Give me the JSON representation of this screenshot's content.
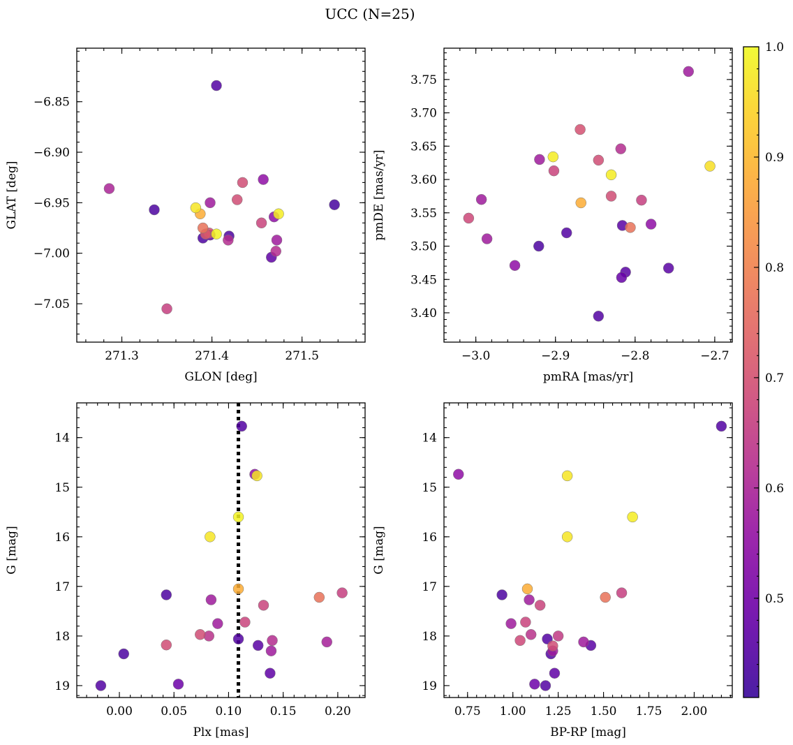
{
  "title": "UCC (N=25)",
  "colorbar": {
    "colormap": "plasma",
    "vmin": 0.41,
    "vmax": 1.0,
    "ticks": [
      0.5,
      0.6,
      0.7,
      0.8,
      0.9,
      1.0
    ],
    "tick_labels": [
      "0.5",
      "0.6",
      "0.7",
      "0.8",
      "0.9",
      "1.0"
    ]
  },
  "chart_data": [
    {
      "type": "scatter",
      "xlabel": "GLON [deg]",
      "ylabel": "GLAT [deg]",
      "xlim": [
        271.25,
        271.57
      ],
      "ylim": [
        -7.088,
        -6.797
      ],
      "xticks": [
        271.3,
        271.4,
        271.5
      ],
      "xtick_labels": [
        "271.3",
        "271.4",
        "271.5"
      ],
      "yticks": [
        -6.85,
        -6.9,
        -6.95,
        -7.0,
        -7.05
      ],
      "ytick_labels": [
        "−6.85",
        "−6.90",
        "−6.95",
        "−7.00",
        "−7.05"
      ],
      "x_minor_step": 0.02,
      "y_minor_step": 0.01,
      "points": [
        {
          "x": 271.405,
          "y": -6.834,
          "c": 0.45
        },
        {
          "x": 271.286,
          "y": -6.936,
          "c": 0.6
        },
        {
          "x": 271.336,
          "y": -6.957,
          "c": 0.44
        },
        {
          "x": 271.382,
          "y": -6.955,
          "c": 0.97
        },
        {
          "x": 271.387,
          "y": -6.961,
          "c": 0.88
        },
        {
          "x": 271.398,
          "y": -6.95,
          "c": 0.58
        },
        {
          "x": 271.39,
          "y": -6.975,
          "c": 0.77
        },
        {
          "x": 271.393,
          "y": -6.981,
          "c": 0.72
        },
        {
          "x": 271.397,
          "y": -6.98,
          "c": 0.7
        },
        {
          "x": 271.39,
          "y": -6.985,
          "c": 0.44
        },
        {
          "x": 271.398,
          "y": -6.982,
          "c": 0.47
        },
        {
          "x": 271.405,
          "y": -6.981,
          "c": 0.99
        },
        {
          "x": 271.419,
          "y": -6.983,
          "c": 0.44
        },
        {
          "x": 271.418,
          "y": -6.987,
          "c": 0.62
        },
        {
          "x": 271.428,
          "y": -6.947,
          "c": 0.69
        },
        {
          "x": 271.434,
          "y": -6.93,
          "c": 0.69
        },
        {
          "x": 271.457,
          "y": -6.927,
          "c": 0.55
        },
        {
          "x": 271.455,
          "y": -6.97,
          "c": 0.67
        },
        {
          "x": 271.469,
          "y": -6.964,
          "c": 0.55
        },
        {
          "x": 271.474,
          "y": -6.961,
          "c": 0.98
        },
        {
          "x": 271.472,
          "y": -6.987,
          "c": 0.58
        },
        {
          "x": 271.471,
          "y": -6.998,
          "c": 0.62
        },
        {
          "x": 271.466,
          "y": -7.004,
          "c": 0.47
        },
        {
          "x": 271.536,
          "y": -6.952,
          "c": 0.43
        },
        {
          "x": 271.35,
          "y": -7.055,
          "c": 0.66
        }
      ]
    },
    {
      "type": "scatter",
      "xlabel": "pmRA [mas/yr]",
      "ylabel": "pmDE [mas/yr]",
      "xlim": [
        -3.04,
        -2.678
      ],
      "ylim": [
        3.356,
        3.797
      ],
      "xticks": [
        -3.0,
        -2.9,
        -2.8,
        -2.7
      ],
      "xtick_labels": [
        "−3.0",
        "−2.9",
        "−2.8",
        "−2.7"
      ],
      "yticks": [
        3.4,
        3.45,
        3.5,
        3.55,
        3.6,
        3.65,
        3.7,
        3.75
      ],
      "ytick_labels": [
        "3.40",
        "3.45",
        "3.50",
        "3.55",
        "3.60",
        "3.65",
        "3.70",
        "3.75"
      ],
      "x_minor_step": 0.02,
      "y_minor_step": 0.01,
      "points": [
        {
          "x": -2.733,
          "y": 3.762,
          "c": 0.58
        },
        {
          "x": -2.869,
          "y": 3.675,
          "c": 0.7
        },
        {
          "x": -2.818,
          "y": 3.646,
          "c": 0.62
        },
        {
          "x": -2.903,
          "y": 3.634,
          "c": 0.98
        },
        {
          "x": -2.92,
          "y": 3.63,
          "c": 0.58
        },
        {
          "x": -2.846,
          "y": 3.629,
          "c": 0.69
        },
        {
          "x": -2.706,
          "y": 3.62,
          "c": 0.96
        },
        {
          "x": -2.902,
          "y": 3.613,
          "c": 0.67
        },
        {
          "x": -2.83,
          "y": 3.607,
          "c": 0.98
        },
        {
          "x": -2.83,
          "y": 3.575,
          "c": 0.69
        },
        {
          "x": -2.993,
          "y": 3.57,
          "c": 0.58
        },
        {
          "x": -2.792,
          "y": 3.569,
          "c": 0.66
        },
        {
          "x": -2.868,
          "y": 3.565,
          "c": 0.88
        },
        {
          "x": -3.009,
          "y": 3.542,
          "c": 0.68
        },
        {
          "x": -2.78,
          "y": 3.533,
          "c": 0.55
        },
        {
          "x": -2.816,
          "y": 3.531,
          "c": 0.46
        },
        {
          "x": -2.806,
          "y": 3.528,
          "c": 0.77
        },
        {
          "x": -2.886,
          "y": 3.52,
          "c": 0.45
        },
        {
          "x": -2.986,
          "y": 3.511,
          "c": 0.58
        },
        {
          "x": -2.921,
          "y": 3.5,
          "c": 0.44
        },
        {
          "x": -2.951,
          "y": 3.471,
          "c": 0.55
        },
        {
          "x": -2.758,
          "y": 3.467,
          "c": 0.46
        },
        {
          "x": -2.812,
          "y": 3.461,
          "c": 0.46
        },
        {
          "x": -2.817,
          "y": 3.453,
          "c": 0.48
        },
        {
          "x": -2.846,
          "y": 3.395,
          "c": 0.45
        }
      ]
    },
    {
      "type": "scatter",
      "xlabel": "Plx [mas]",
      "ylabel": "G [mag]",
      "xlim": [
        -0.039,
        0.225
      ],
      "ylim": [
        19.24,
        13.3
      ],
      "xticks": [
        0.0,
        0.05,
        0.1,
        0.15,
        0.2
      ],
      "xtick_labels": [
        "0.00",
        "0.05",
        "0.10",
        "0.15",
        "0.20"
      ],
      "yticks": [
        14,
        15,
        16,
        17,
        18,
        19
      ],
      "ytick_labels": [
        "14",
        "15",
        "16",
        "17",
        "18",
        "19"
      ],
      "x_minor_step": 0.01,
      "y_minor_step": 0.2,
      "vline": {
        "x": 0.109,
        "style": "dotted",
        "color": "#000000"
      },
      "points": [
        {
          "x": 0.112,
          "y": 13.77,
          "c": 0.45
        },
        {
          "x": 0.124,
          "y": 14.74,
          "c": 0.55
        },
        {
          "x": 0.126,
          "y": 14.77,
          "c": 0.97
        },
        {
          "x": 0.109,
          "y": 15.6,
          "c": 0.99
        },
        {
          "x": 0.083,
          "y": 16.0,
          "c": 0.97
        },
        {
          "x": 0.109,
          "y": 17.05,
          "c": 0.88
        },
        {
          "x": 0.043,
          "y": 17.17,
          "c": 0.44
        },
        {
          "x": 0.204,
          "y": 17.13,
          "c": 0.66
        },
        {
          "x": 0.183,
          "y": 17.22,
          "c": 0.77
        },
        {
          "x": 0.084,
          "y": 17.27,
          "c": 0.58
        },
        {
          "x": 0.132,
          "y": 17.38,
          "c": 0.67
        },
        {
          "x": 0.115,
          "y": 17.72,
          "c": 0.67
        },
        {
          "x": 0.09,
          "y": 17.75,
          "c": 0.58
        },
        {
          "x": 0.074,
          "y": 17.97,
          "c": 0.69
        },
        {
          "x": 0.082,
          "y": 18.0,
          "c": 0.63
        },
        {
          "x": 0.109,
          "y": 18.06,
          "c": 0.45
        },
        {
          "x": 0.14,
          "y": 18.09,
          "c": 0.62
        },
        {
          "x": 0.19,
          "y": 18.12,
          "c": 0.59
        },
        {
          "x": 0.043,
          "y": 18.18,
          "c": 0.69
        },
        {
          "x": 0.127,
          "y": 18.19,
          "c": 0.46
        },
        {
          "x": 0.139,
          "y": 18.3,
          "c": 0.58
        },
        {
          "x": 0.004,
          "y": 18.36,
          "c": 0.44
        },
        {
          "x": 0.138,
          "y": 18.75,
          "c": 0.47
        },
        {
          "x": 0.054,
          "y": 18.97,
          "c": 0.49
        },
        {
          "x": -0.017,
          "y": 19.0,
          "c": 0.45
        }
      ]
    },
    {
      "type": "scatter",
      "xlabel": "BP-RP [mag]",
      "ylabel": "G [mag]",
      "xlim": [
        0.62,
        2.21
      ],
      "ylim": [
        19.24,
        13.3
      ],
      "xticks": [
        0.75,
        1.0,
        1.25,
        1.5,
        1.75,
        2.0
      ],
      "xtick_labels": [
        "0.75",
        "1.00",
        "1.25",
        "1.50",
        "1.75",
        "2.00"
      ],
      "yticks": [
        14,
        15,
        16,
        17,
        18,
        19
      ],
      "ytick_labels": [
        "14",
        "15",
        "16",
        "17",
        "18",
        "19"
      ],
      "x_minor_step": 0.05,
      "y_minor_step": 0.2,
      "points": [
        {
          "x": 2.15,
          "y": 13.77,
          "c": 0.45
        },
        {
          "x": 0.7,
          "y": 14.74,
          "c": 0.55
        },
        {
          "x": 1.3,
          "y": 14.77,
          "c": 0.97
        },
        {
          "x": 1.66,
          "y": 15.6,
          "c": 0.98
        },
        {
          "x": 1.3,
          "y": 16.0,
          "c": 0.97
        },
        {
          "x": 1.08,
          "y": 17.05,
          "c": 0.88
        },
        {
          "x": 0.94,
          "y": 17.17,
          "c": 0.44
        },
        {
          "x": 1.6,
          "y": 17.13,
          "c": 0.66
        },
        {
          "x": 1.51,
          "y": 17.22,
          "c": 0.77
        },
        {
          "x": 1.09,
          "y": 17.27,
          "c": 0.58
        },
        {
          "x": 1.15,
          "y": 17.38,
          "c": 0.67
        },
        {
          "x": 0.99,
          "y": 17.75,
          "c": 0.58
        },
        {
          "x": 1.07,
          "y": 17.72,
          "c": 0.67
        },
        {
          "x": 1.1,
          "y": 17.97,
          "c": 0.63
        },
        {
          "x": 1.25,
          "y": 18.0,
          "c": 0.65
        },
        {
          "x": 1.04,
          "y": 18.09,
          "c": 0.68
        },
        {
          "x": 1.19,
          "y": 18.06,
          "c": 0.45
        },
        {
          "x": 1.39,
          "y": 18.12,
          "c": 0.58
        },
        {
          "x": 1.43,
          "y": 18.19,
          "c": 0.46
        },
        {
          "x": 1.22,
          "y": 18.2,
          "c": 0.69
        },
        {
          "x": 1.22,
          "y": 18.3,
          "c": 0.58
        },
        {
          "x": 1.21,
          "y": 18.36,
          "c": 0.45
        },
        {
          "x": 1.23,
          "y": 18.75,
          "c": 0.47
        },
        {
          "x": 1.12,
          "y": 18.97,
          "c": 0.49
        },
        {
          "x": 1.18,
          "y": 19.0,
          "c": 0.45
        }
      ]
    }
  ]
}
